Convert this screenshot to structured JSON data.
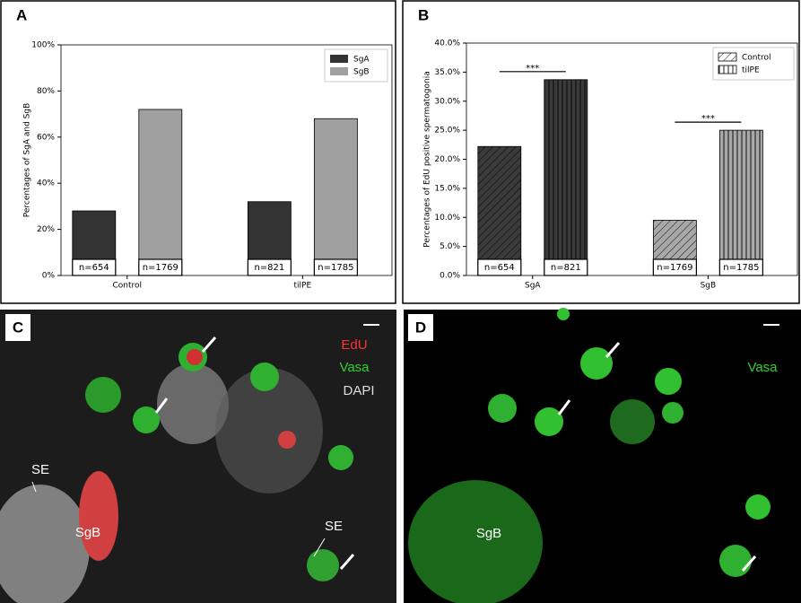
{
  "chart_data": [
    {
      "type": "bar",
      "panel": "A",
      "ylabel": "Percentages of SgA and SgB",
      "categories": [
        "Control",
        "tilPE"
      ],
      "series": [
        {
          "name": "SgA",
          "color": "#333333",
          "values": [
            28,
            32
          ],
          "labels": [
            "n=654",
            "n=821"
          ]
        },
        {
          "name": "SgB",
          "color": "#a0a0a0",
          "values": [
            72,
            68
          ],
          "labels": [
            "n=1769",
            "n=1785"
          ]
        }
      ],
      "ylim": [
        0,
        100
      ],
      "yticks": [
        {
          "value": 0,
          "label": "0%"
        },
        {
          "value": 20,
          "label": "20%"
        },
        {
          "value": 40,
          "label": "40%"
        },
        {
          "value": 60,
          "label": "60%"
        },
        {
          "value": 80,
          "label": "80%"
        },
        {
          "value": 100,
          "label": "100%"
        }
      ],
      "legend": "upper right"
    },
    {
      "type": "bar",
      "panel": "B",
      "ylabel": "Percentages of EdU positive spermatogonia",
      "categories": [
        "SgA",
        "SgB"
      ],
      "category_colors": [
        "#3a3a3a",
        "#a8a8a8"
      ],
      "series": [
        {
          "name": "Control",
          "hatch": "diagonal",
          "values": [
            22.2,
            9.5
          ],
          "labels": [
            "n=654",
            "n=1769"
          ]
        },
        {
          "name": "tilPE",
          "hatch": "vertical",
          "values": [
            33.7,
            25.0
          ],
          "labels": [
            "n=821",
            "n=1785"
          ]
        }
      ],
      "ylim": [
        0,
        40
      ],
      "yticks": [
        {
          "value": 0,
          "label": "0.0%"
        },
        {
          "value": 5,
          "label": "5.0%"
        },
        {
          "value": 10,
          "label": "10.0%"
        },
        {
          "value": 15,
          "label": "15.0%"
        },
        {
          "value": 20,
          "label": "20.0%"
        },
        {
          "value": 25,
          "label": "25.0%"
        },
        {
          "value": 30,
          "label": "30.0%"
        },
        {
          "value": 35,
          "label": "35.0%"
        },
        {
          "value": 40,
          "label": "40.0%"
        }
      ],
      "annotations": [
        {
          "text": "***",
          "category": 0
        },
        {
          "text": "***",
          "category": 1
        }
      ],
      "legend": "upper right"
    }
  ],
  "images": [
    {
      "panel": "C",
      "labels": [
        "EdU",
        "Vasa",
        "DAPI",
        "SE",
        "SE",
        "SgB"
      ]
    },
    {
      "panel": "D",
      "labels": [
        "Vasa",
        "SgB"
      ]
    }
  ]
}
